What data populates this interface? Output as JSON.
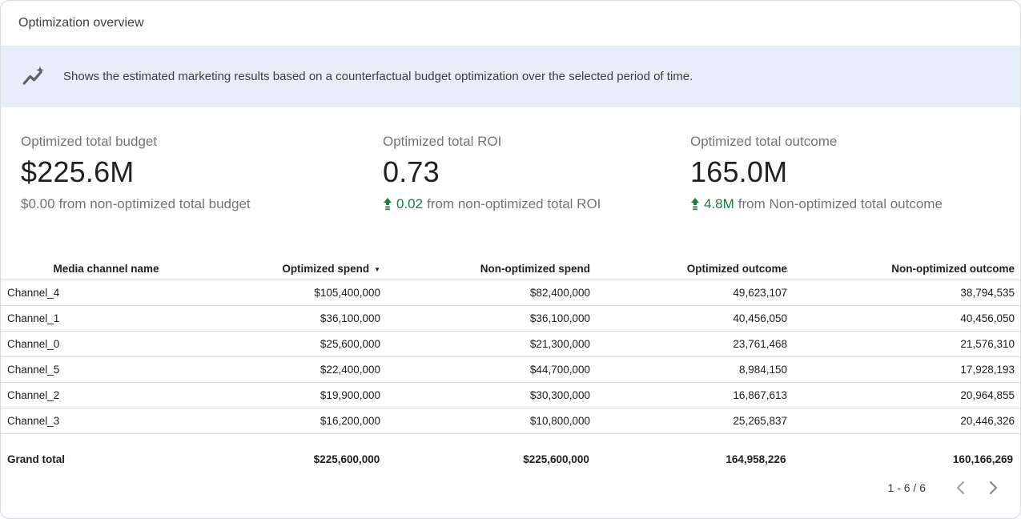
{
  "card": {
    "title": "Optimization overview"
  },
  "banner": {
    "icon": "insights-icon",
    "text": "Shows the estimated marketing results based on a counterfactual budget optimization over the selected period of time.",
    "bg_color": "#e7edfb"
  },
  "kpis": [
    {
      "label": "Optimized total budget",
      "value": "$225.6M",
      "delta_value": "$0.00",
      "delta_rest": "from non-optimized total budget",
      "delta_positive": false
    },
    {
      "label": "Optimized total ROI",
      "value": "0.73",
      "delta_value": "0.02",
      "delta_rest": "from non-optimized total ROI",
      "delta_positive": true
    },
    {
      "label": "Optimized total outcome",
      "value": "165.0M",
      "delta_value": "4.8M",
      "delta_rest": "from Non-optimized total outcome",
      "delta_positive": true
    }
  ],
  "table": {
    "columns": [
      "Media channel name",
      "Optimized spend",
      "Non-optimized spend",
      "Optimized outcome",
      "Non-optimized outcome"
    ],
    "sort": {
      "column_index": 1,
      "direction": "desc",
      "glyph": "▼"
    },
    "rows": [
      [
        "Channel_4",
        "$105,400,000",
        "$82,400,000",
        "49,623,107",
        "38,794,535"
      ],
      [
        "Channel_1",
        "$36,100,000",
        "$36,100,000",
        "40,456,050",
        "40,456,050"
      ],
      [
        "Channel_0",
        "$25,600,000",
        "$21,300,000",
        "23,761,468",
        "21,576,310"
      ],
      [
        "Channel_5",
        "$22,400,000",
        "$44,700,000",
        "8,984,150",
        "17,928,193"
      ],
      [
        "Channel_2",
        "$19,900,000",
        "$30,300,000",
        "16,867,613",
        "20,964,855"
      ],
      [
        "Channel_3",
        "$16,200,000",
        "$10,800,000",
        "25,265,837",
        "20,446,326"
      ]
    ],
    "grand_total": [
      "Grand total",
      "$225,600,000",
      "$225,600,000",
      "164,958,226",
      "160,166,269"
    ]
  },
  "pagination": {
    "range": "1 - 6 / 6"
  },
  "colors": {
    "positive_green": "#188038",
    "muted_text": "#757575",
    "banner_bg": "#e7edfb",
    "divider": "#e0e0e0",
    "chevron_disabled": "#9aa0a6",
    "chevron_enabled": "#80868b"
  }
}
